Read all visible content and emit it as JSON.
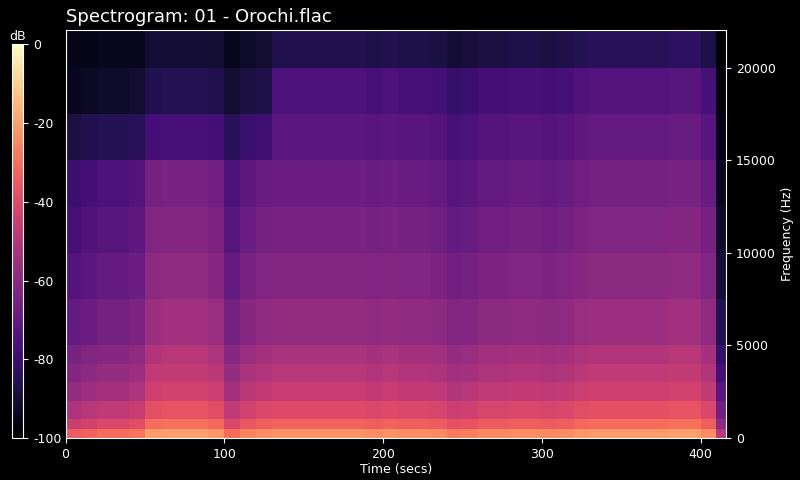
{
  "chart_data": {
    "type": "heatmap",
    "title": "Spectrogram: 01 - Orochi.flac",
    "x_label": "Time (secs)",
    "y_label": "Frequency (Hz)",
    "xlim": [
      0,
      416
    ],
    "ylim": [
      0,
      22050
    ],
    "xticks": [
      0,
      100,
      200,
      300,
      400
    ],
    "yticks": [
      0,
      5000,
      10000,
      15000,
      20000
    ],
    "time_edges": [
      0,
      10,
      20,
      30,
      40,
      50,
      60,
      70,
      80,
      90,
      100,
      110,
      120,
      130,
      140,
      150,
      160,
      170,
      180,
      190,
      200,
      210,
      220,
      230,
      240,
      250,
      260,
      270,
      280,
      290,
      300,
      310,
      320,
      330,
      340,
      350,
      360,
      370,
      380,
      390,
      400,
      410,
      416
    ],
    "frequency_edges": [
      0,
      500,
      1000,
      2000,
      3000,
      4000,
      5000,
      7500,
      10000,
      12500,
      15000,
      17500,
      20000,
      22050
    ],
    "cells": [
      [
        -35,
        -33,
        -31,
        -31,
        -29,
        -21,
        -20,
        -20,
        -20,
        -22,
        -31,
        -26,
        -24,
        -23,
        -23,
        -23,
        -23,
        -23,
        -23,
        -24,
        -23,
        -24,
        -24,
        -25,
        -28,
        -27,
        -25,
        -25,
        -24,
        -24,
        -25,
        -24,
        -22,
        -21,
        -21,
        -21,
        -21,
        -21,
        -20,
        -20,
        -24,
        -50
      ],
      [
        -45,
        -43,
        -41,
        -41,
        -39,
        -31,
        -30,
        -30,
        -30,
        -32,
        -41,
        -36,
        -34,
        -33,
        -33,
        -33,
        -33,
        -33,
        -33,
        -34,
        -33,
        -34,
        -34,
        -35,
        -38,
        -37,
        -35,
        -35,
        -34,
        -34,
        -35,
        -34,
        -32,
        -31,
        -31,
        -31,
        -31,
        -31,
        -30,
        -30,
        -34,
        -60
      ],
      [
        -52,
        -50,
        -48,
        -48,
        -46,
        -38,
        -37,
        -37,
        -37,
        -39,
        -48,
        -43,
        -41,
        -40,
        -40,
        -40,
        -40,
        -40,
        -40,
        -41,
        -40,
        -41,
        -41,
        -42,
        -45,
        -44,
        -42,
        -42,
        -41,
        -41,
        -42,
        -41,
        -39,
        -38,
        -38,
        -38,
        -38,
        -38,
        -37,
        -37,
        -41,
        -67
      ],
      [
        -58,
        -56,
        -54,
        -54,
        -52,
        -44,
        -43,
        -43,
        -43,
        -45,
        -54,
        -49,
        -47,
        -46,
        -46,
        -46,
        -46,
        -46,
        -46,
        -47,
        -46,
        -47,
        -47,
        -48,
        -51,
        -50,
        -48,
        -48,
        -47,
        -47,
        -48,
        -47,
        -45,
        -44,
        -44,
        -44,
        -44,
        -44,
        -43,
        -43,
        -47,
        -73
      ],
      [
        -62,
        -60,
        -58,
        -58,
        -56,
        -48,
        -47,
        -47,
        -47,
        -49,
        -58,
        -53,
        -51,
        -50,
        -50,
        -50,
        -50,
        -50,
        -50,
        -51,
        -50,
        -51,
        -51,
        -52,
        -55,
        -54,
        -52,
        -52,
        -51,
        -51,
        -52,
        -51,
        -49,
        -48,
        -48,
        -48,
        -48,
        -48,
        -47,
        -47,
        -51,
        -78
      ],
      [
        -65,
        -63,
        -61,
        -61,
        -59,
        -51,
        -50,
        -50,
        -50,
        -52,
        -61,
        -56,
        -54,
        -53,
        -53,
        -53,
        -53,
        -53,
        -53,
        -54,
        -53,
        -54,
        -54,
        -55,
        -58,
        -57,
        -55,
        -55,
        -54,
        -54,
        -55,
        -54,
        -52,
        -51,
        -51,
        -51,
        -51,
        -51,
        -50,
        -50,
        -54,
        -82
      ],
      [
        -70,
        -68,
        -66,
        -66,
        -64,
        -56,
        -55,
        -55,
        -55,
        -57,
        -66,
        -61,
        -59,
        -58,
        -58,
        -58,
        -58,
        -58,
        -58,
        -59,
        -58,
        -59,
        -59,
        -60,
        -63,
        -62,
        -60,
        -60,
        -59,
        -59,
        -60,
        -59,
        -57,
        -56,
        -56,
        -56,
        -56,
        -56,
        -55,
        -55,
        -59,
        -86
      ],
      [
        -74,
        -72,
        -70,
        -70,
        -68,
        -60,
        -59,
        -59,
        -59,
        -61,
        -70,
        -65,
        -63,
        -62,
        -62,
        -62,
        -62,
        -62,
        -62,
        -63,
        -62,
        -63,
        -63,
        -64,
        -67,
        -66,
        -64,
        -64,
        -63,
        -63,
        -64,
        -63,
        -61,
        -60,
        -60,
        -60,
        -60,
        -60,
        -59,
        -59,
        -63,
        -90
      ],
      [
        -77,
        -75,
        -73,
        -73,
        -71,
        -63,
        -62,
        -62,
        -62,
        -64,
        -73,
        -68,
        -66,
        -65,
        -65,
        -65,
        -65,
        -65,
        -65,
        -66,
        -65,
        -66,
        -66,
        -67,
        -70,
        -69,
        -67,
        -67,
        -66,
        -66,
        -67,
        -66,
        -64,
        -63,
        -63,
        -63,
        -63,
        -63,
        -62,
        -62,
        -66,
        -92
      ],
      [
        -80,
        -78,
        -76,
        -76,
        -74,
        -66,
        -65,
        -65,
        -65,
        -67,
        -76,
        -71,
        -69,
        -68,
        -68,
        -68,
        -68,
        -68,
        -68,
        -69,
        -68,
        -69,
        -69,
        -70,
        -73,
        -72,
        -70,
        -70,
        -69,
        -69,
        -70,
        -69,
        -67,
        -66,
        -66,
        -66,
        -66,
        -66,
        -65,
        -65,
        -69,
        -94
      ],
      [
        -88,
        -86,
        -85,
        -85,
        -84,
        -78,
        -77,
        -77,
        -77,
        -78,
        -84,
        -80,
        -79,
        -72,
        -72,
        -72,
        -72,
        -72,
        -72,
        -73,
        -72,
        -73,
        -73,
        -74,
        -77,
        -76,
        -74,
        -74,
        -73,
        -73,
        -74,
        -73,
        -71,
        -70,
        -70,
        -70,
        -70,
        -70,
        -69,
        -69,
        -73,
        -96
      ],
      [
        -94,
        -93,
        -92,
        -92,
        -91,
        -86,
        -85,
        -85,
        -85,
        -86,
        -91,
        -88,
        -87,
        -76,
        -76,
        -76,
        -76,
        -76,
        -76,
        -77,
        -76,
        -77,
        -77,
        -78,
        -81,
        -80,
        -78,
        -78,
        -77,
        -77,
        -78,
        -77,
        -75,
        -74,
        -74,
        -74,
        -74,
        -74,
        -73,
        -73,
        -77,
        -98
      ],
      [
        -95,
        -95,
        -94,
        -94,
        -94,
        -90,
        -90,
        -90,
        -90,
        -91,
        -94,
        -92,
        -91,
        -86,
        -86,
        -86,
        -86,
        -86,
        -86,
        -87,
        -86,
        -87,
        -87,
        -88,
        -90,
        -89,
        -88,
        -88,
        -87,
        -87,
        -88,
        -87,
        -85,
        -84,
        -84,
        -84,
        -84,
        -84,
        -83,
        -83,
        -87,
        -99
      ]
    ],
    "colorbar": {
      "label": "dB",
      "range": [
        -100,
        0
      ],
      "ticks": [
        -100,
        -80,
        -60,
        -40,
        -20,
        0
      ]
    }
  }
}
